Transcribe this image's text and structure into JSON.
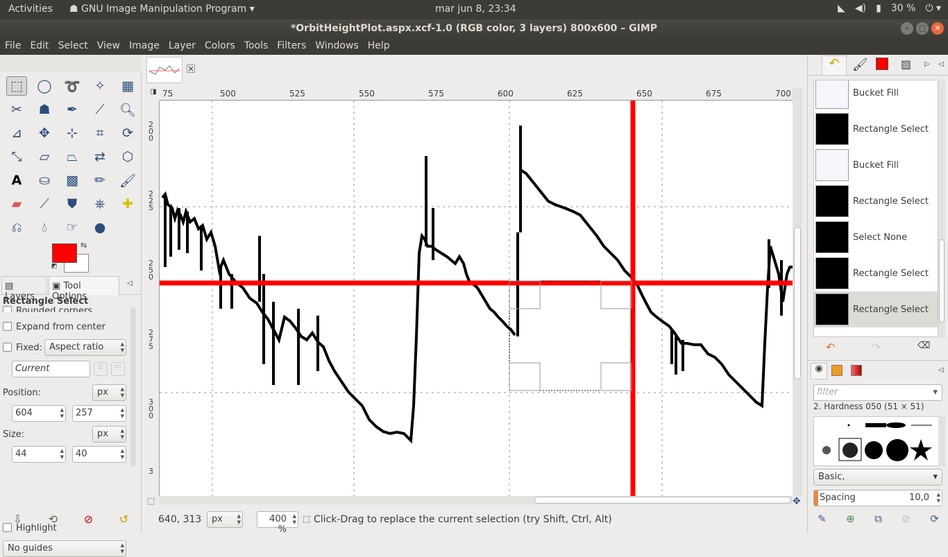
{
  "topbar": {
    "activities": "Activities",
    "app_name": "GNU Image Manipulation Program",
    "clock": "mar jun  8, 23:34",
    "battery": "30 %"
  },
  "window": {
    "title": "*OrbitHeightPlot.aspx.xcf-1.0 (RGB color, 3 layers) 800x600 – GIMP"
  },
  "menu": [
    "File",
    "Edit",
    "Select",
    "View",
    "Image",
    "Layer",
    "Colors",
    "Tools",
    "Filters",
    "Windows",
    "Help"
  ],
  "toolbox": {
    "tabs": {
      "layers": "Layers",
      "tool_options": "Tool Options"
    },
    "tool_title": "Rectangle Select",
    "rounded_corners": "Rounded corners",
    "expand_from_center": "Expand from center",
    "fixed_label": "Fixed:",
    "fixed_mode": "Aspect ratio",
    "fixed_value": "Current",
    "position_label": "Position:",
    "position_unit": "px",
    "pos_x": "604",
    "pos_y": "257",
    "size_label": "Size:",
    "size_unit": "px",
    "size_w": "44",
    "size_h": "40",
    "highlight": "Highlight",
    "guides": "No guides"
  },
  "colors": {
    "foreground": "#ff0000",
    "background": "#ffffff",
    "guide_red": "#ff0000"
  },
  "ruler": {
    "h_ticks": [
      "75",
      "500",
      "525",
      "550",
      "575",
      "600",
      "625",
      "650",
      "675",
      "700"
    ],
    "v_ticks": [
      "2 0 0",
      "2 2 5",
      "2 5 0",
      "2 7 5",
      "3 0 0",
      "3"
    ]
  },
  "status": {
    "coords": "640, 313",
    "unit": "px",
    "zoom": "400 %",
    "message": "Click-Drag to replace the current selection (try Shift, Ctrl, Alt)"
  },
  "history": {
    "items": [
      "Bucket Fill",
      "Rectangle Select",
      "Bucket Fill",
      "Rectangle Select",
      "Select None",
      "Rectangle Select",
      "Rectangle Select"
    ]
  },
  "brushes": {
    "filter_placeholder": "filter",
    "current": "2. Hardness 050 (51 × 51)",
    "tag": "Basic,",
    "spacing_label": "Spacing",
    "spacing_value": "10,0"
  }
}
